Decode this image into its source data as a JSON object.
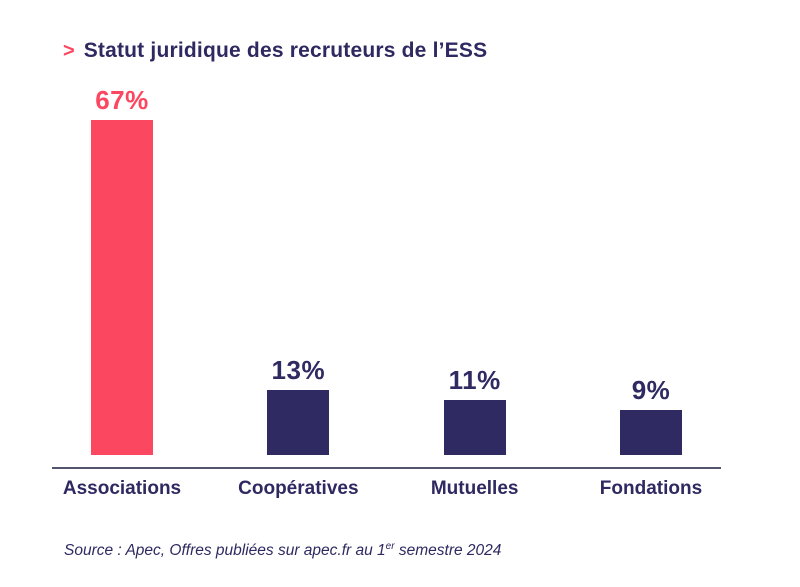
{
  "header": {
    "chevron": ">",
    "title": "Statut juridique des recruteurs de l’ESS"
  },
  "colors": {
    "accent_pink": "#FC4760",
    "navy": "#2F2A62",
    "axis_line": "#54546E",
    "background": "#FFFFFF"
  },
  "chart_data": {
    "type": "bar",
    "title": "Statut juridique des recruteurs de l’ESS",
    "categories": [
      "Associations",
      "Coopératives",
      "Mutuelles",
      "Fondations"
    ],
    "values": [
      67,
      13,
      11,
      9
    ],
    "value_labels": [
      "67%",
      "13%",
      "11%",
      "9%"
    ],
    "unit": "%",
    "xlabel": "",
    "ylabel": "",
    "ylim": [
      0,
      70
    ],
    "grid": false,
    "legend": false,
    "value_labels_position": "above-bars",
    "bar_colors": [
      "#FC4760",
      "#2F2A62",
      "#2F2A62",
      "#2F2A62"
    ],
    "value_label_colors": [
      "#FC4760",
      "#2F2A62",
      "#2F2A62",
      "#2F2A62"
    ]
  },
  "source": {
    "prefix": "Source : Apec, Offres publiées sur apec.fr au 1",
    "superscript": "er",
    "suffix": " semestre 2024"
  }
}
